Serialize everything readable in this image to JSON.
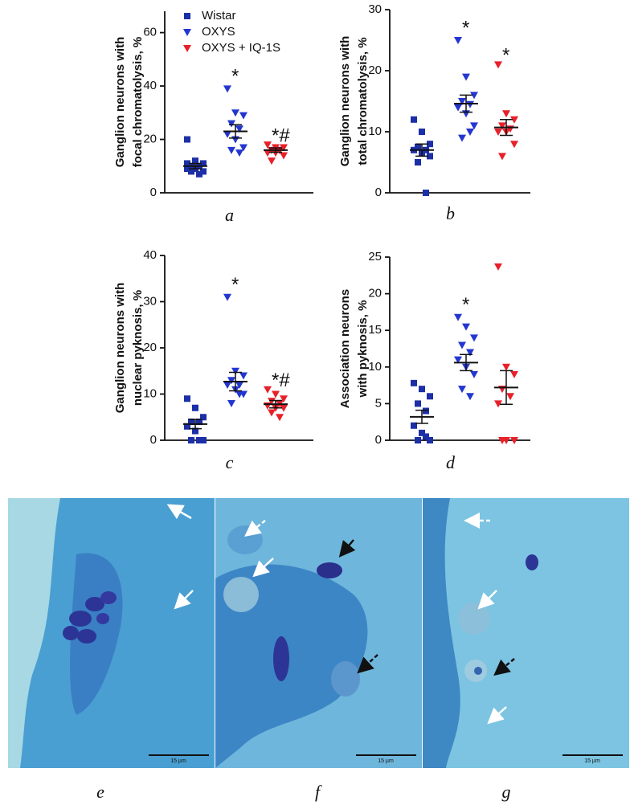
{
  "chart_data": [
    {
      "type": "scatter",
      "panel_label": "a",
      "ylabel": [
        "Ganglion neurons with",
        "focal chromatolysis, %"
      ],
      "ylim": [
        0,
        68
      ],
      "yticks": [
        0,
        20,
        40,
        60
      ],
      "legend": "top-right",
      "series": [
        {
          "name": "Wistar",
          "color": "#1c2fa6",
          "marker": "square",
          "values": [
            20,
            12,
            11,
            10,
            10,
            9,
            9,
            8,
            8,
            7,
            11
          ],
          "mean": 10,
          "sem": 1
        },
        {
          "name": "OXYS",
          "color": "#2436d0",
          "marker": "triangle-down",
          "values": [
            39,
            30,
            29,
            26,
            24,
            22,
            20,
            17,
            16,
            15
          ],
          "mean": 23,
          "sem": 2.5,
          "annotation": "*"
        },
        {
          "name": "OXYS + IQ-1S",
          "color": "#e8202a",
          "marker": "triangle-down",
          "values": [
            18,
            17,
            17,
            16,
            16,
            15,
            15,
            14,
            12,
            16
          ],
          "mean": 16,
          "sem": 0.8,
          "annotation": "*#"
        }
      ]
    },
    {
      "type": "scatter",
      "panel_label": "b",
      "ylabel": [
        "Ganglion neurons with",
        "total chromatolysis, %"
      ],
      "ylim": [
        0,
        30
      ],
      "yticks": [
        0,
        10,
        20,
        30
      ],
      "series": [
        {
          "color": "#1c2fa6",
          "marker": "square",
          "values": [
            12,
            10,
            8,
            7.5,
            7,
            7,
            6.5,
            6,
            5,
            0
          ],
          "mean": 7,
          "sem": 1
        },
        {
          "color": "#2436d0",
          "marker": "triangle-down",
          "values": [
            25,
            19,
            16,
            15,
            14.5,
            14,
            13,
            11,
            9,
            10
          ],
          "mean": 14.6,
          "sem": 1.4,
          "annotation": "*"
        },
        {
          "color": "#e8202a",
          "marker": "triangle-down",
          "values": [
            21,
            13,
            12,
            11,
            10.5,
            10,
            10,
            8,
            6
          ],
          "mean": 10.7,
          "sem": 1.3,
          "annotation": "*"
        }
      ]
    },
    {
      "type": "scatter",
      "panel_label": "c",
      "ylabel": [
        "Ganglion neurons with",
        "nuclear pyknosis, %"
      ],
      "ylim": [
        0,
        40
      ],
      "yticks": [
        0,
        10,
        20,
        30,
        40
      ],
      "series": [
        {
          "color": "#1c2fa6",
          "marker": "square",
          "values": [
            9,
            7,
            5,
            4,
            4,
            3,
            2,
            0,
            0,
            0
          ],
          "mean": 3.5,
          "sem": 1
        },
        {
          "color": "#2436d0",
          "marker": "triangle-down",
          "values": [
            31,
            15,
            14,
            13,
            12,
            12,
            11,
            10,
            8,
            10
          ],
          "mean": 12.7,
          "sem": 2,
          "annotation": "*"
        },
        {
          "color": "#e8202a",
          "marker": "triangle-down",
          "values": [
            11,
            10,
            9,
            8.5,
            8,
            7.5,
            7,
            7,
            6,
            5
          ],
          "mean": 7.8,
          "sem": 0.8,
          "annotation": "*#"
        }
      ]
    },
    {
      "type": "scatter",
      "panel_label": "d",
      "ylabel": [
        "Association neurons",
        "with pyknosis, %"
      ],
      "ylim": [
        0,
        25
      ],
      "yticks": [
        0,
        5,
        10,
        15,
        20,
        25
      ],
      "series": [
        {
          "color": "#1c2fa6",
          "marker": "square",
          "values": [
            7.8,
            7,
            6,
            5,
            4,
            2,
            1,
            0,
            0,
            0.5
          ],
          "mean": 3.2,
          "sem": 0.9
        },
        {
          "color": "#2436d0",
          "marker": "triangle-down",
          "values": [
            16.8,
            15.5,
            14,
            13,
            12,
            11,
            10,
            9,
            7,
            6
          ],
          "mean": 10.6,
          "sem": 1.1,
          "annotation": "*"
        },
        {
          "color": "#e8202a",
          "marker": "triangle-down",
          "values": [
            23.7,
            10,
            9,
            7,
            6,
            5,
            0,
            0,
            0
          ],
          "mean": 7.2,
          "sem": 2.3
        }
      ]
    }
  ],
  "micrographs": [
    {
      "label": "e",
      "scale_bar": "15 µm"
    },
    {
      "label": "f",
      "scale_bar": "15 µm"
    },
    {
      "label": "g",
      "scale_bar": "15 µm"
    }
  ]
}
